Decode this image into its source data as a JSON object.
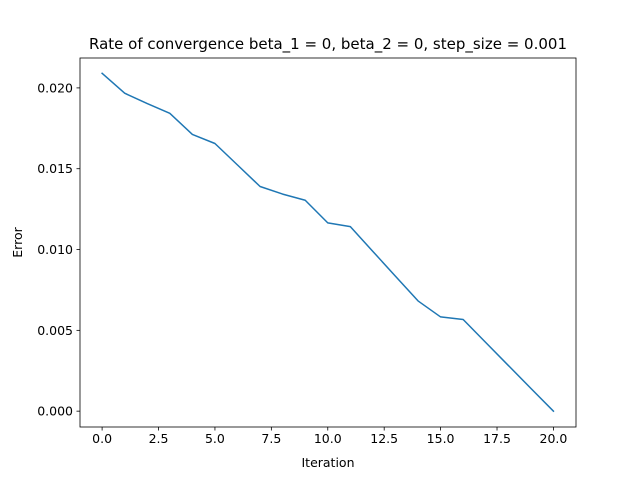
{
  "chart_data": {
    "type": "line",
    "title": "Rate of convergence beta_1 = 0, beta_2 = 0, step_size = 0.001",
    "xlabel": "Iteration",
    "ylabel": "Error",
    "xlim": [
      -0.98,
      21.0
    ],
    "ylim": [
      -0.00098,
      0.02185
    ],
    "xticks": [
      0.0,
      2.5,
      5.0,
      7.5,
      10.0,
      12.5,
      15.0,
      17.5,
      20.0
    ],
    "xtick_labels": [
      "0.0",
      "2.5",
      "5.0",
      "7.5",
      "10.0",
      "12.5",
      "15.0",
      "17.5",
      "20.0"
    ],
    "yticks": [
      0.0,
      0.005,
      0.01,
      0.015,
      0.02
    ],
    "ytick_labels": [
      "0.000",
      "0.005",
      "0.010",
      "0.015",
      "0.020"
    ],
    "grid": false,
    "legend": "none",
    "series": [
      {
        "color": "#1f77b4",
        "x": [
          0,
          1,
          2,
          3,
          4,
          5,
          6,
          7,
          8,
          9,
          10,
          11,
          12,
          13,
          14,
          15,
          16,
          17,
          18,
          19,
          20
        ],
        "y": [
          0.0209,
          0.01967,
          0.01903,
          0.01843,
          0.01712,
          0.01656,
          0.01523,
          0.0139,
          0.01343,
          0.01305,
          0.01165,
          0.01142,
          0.00988,
          0.00835,
          0.00682,
          0.00583,
          0.00567,
          0.00425,
          0.00283,
          0.00141,
          0.0
        ]
      }
    ]
  }
}
